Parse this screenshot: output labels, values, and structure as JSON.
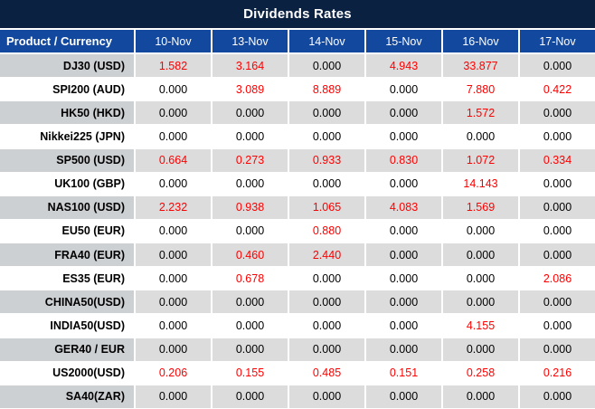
{
  "title": "Dividends Rates",
  "table": {
    "corner_header": "Product / Currency",
    "date_columns": [
      "10-Nov",
      "13-Nov",
      "14-Nov",
      "15-Nov",
      "16-Nov",
      "17-Nov"
    ],
    "rows": [
      {
        "product": "DJ30 (USD)",
        "values": [
          "1.582",
          "3.164",
          "0.000",
          "4.943",
          "33.877",
          "0.000"
        ]
      },
      {
        "product": "SPI200 (AUD)",
        "values": [
          "0.000",
          "3.089",
          "8.889",
          "0.000",
          "7.880",
          "0.422"
        ]
      },
      {
        "product": "HK50 (HKD)",
        "values": [
          "0.000",
          "0.000",
          "0.000",
          "0.000",
          "1.572",
          "0.000"
        ]
      },
      {
        "product": "Nikkei225 (JPN)",
        "values": [
          "0.000",
          "0.000",
          "0.000",
          "0.000",
          "0.000",
          "0.000"
        ]
      },
      {
        "product": "SP500 (USD)",
        "values": [
          "0.664",
          "0.273",
          "0.933",
          "0.830",
          "1.072",
          "0.334"
        ]
      },
      {
        "product": "UK100 (GBP)",
        "values": [
          "0.000",
          "0.000",
          "0.000",
          "0.000",
          "14.143",
          "0.000"
        ]
      },
      {
        "product": "NAS100 (USD)",
        "values": [
          "2.232",
          "0.938",
          "1.065",
          "4.083",
          "1.569",
          "0.000"
        ]
      },
      {
        "product": "EU50 (EUR)",
        "values": [
          "0.000",
          "0.000",
          "0.880",
          "0.000",
          "0.000",
          "0.000"
        ]
      },
      {
        "product": "FRA40 (EUR)",
        "values": [
          "0.000",
          "0.460",
          "2.440",
          "0.000",
          "0.000",
          "0.000"
        ]
      },
      {
        "product": "ES35 (EUR)",
        "values": [
          "0.000",
          "0.678",
          "0.000",
          "0.000",
          "0.000",
          "2.086"
        ]
      },
      {
        "product": "CHINA50(USD)",
        "values": [
          "0.000",
          "0.000",
          "0.000",
          "0.000",
          "0.000",
          "0.000"
        ]
      },
      {
        "product": "INDIA50(USD)",
        "values": [
          "0.000",
          "0.000",
          "0.000",
          "0.000",
          "4.155",
          "0.000"
        ]
      },
      {
        "product": "GER40 / EUR",
        "values": [
          "0.000",
          "0.000",
          "0.000",
          "0.000",
          "0.000",
          "0.000"
        ]
      },
      {
        "product": "US2000(USD)",
        "values": [
          "0.206",
          "0.155",
          "0.485",
          "0.151",
          "0.258",
          "0.216"
        ]
      },
      {
        "product": "SA40(ZAR)",
        "values": [
          "0.000",
          "0.000",
          "0.000",
          "0.000",
          "0.000",
          "0.000"
        ]
      }
    ]
  },
  "chart_data": {
    "type": "table",
    "title": "Dividends Rates",
    "columns": [
      "Product / Currency",
      "10-Nov",
      "13-Nov",
      "14-Nov",
      "15-Nov",
      "16-Nov",
      "17-Nov"
    ],
    "rows": [
      [
        "DJ30 (USD)",
        1.582,
        3.164,
        0.0,
        4.943,
        33.877,
        0.0
      ],
      [
        "SPI200 (AUD)",
        0.0,
        3.089,
        8.889,
        0.0,
        7.88,
        0.422
      ],
      [
        "HK50 (HKD)",
        0.0,
        0.0,
        0.0,
        0.0,
        1.572,
        0.0
      ],
      [
        "Nikkei225 (JPN)",
        0.0,
        0.0,
        0.0,
        0.0,
        0.0,
        0.0
      ],
      [
        "SP500 (USD)",
        0.664,
        0.273,
        0.933,
        0.83,
        1.072,
        0.334
      ],
      [
        "UK100 (GBP)",
        0.0,
        0.0,
        0.0,
        0.0,
        14.143,
        0.0
      ],
      [
        "NAS100 (USD)",
        2.232,
        0.938,
        1.065,
        4.083,
        1.569,
        0.0
      ],
      [
        "EU50 (EUR)",
        0.0,
        0.0,
        0.88,
        0.0,
        0.0,
        0.0
      ],
      [
        "FRA40 (EUR)",
        0.0,
        0.46,
        2.44,
        0.0,
        0.0,
        0.0
      ],
      [
        "ES35 (EUR)",
        0.0,
        0.678,
        0.0,
        0.0,
        0.0,
        2.086
      ],
      [
        "CHINA50(USD)",
        0.0,
        0.0,
        0.0,
        0.0,
        0.0,
        0.0
      ],
      [
        "INDIA50(USD)",
        0.0,
        0.0,
        0.0,
        0.0,
        4.155,
        0.0
      ],
      [
        "GER40 / EUR",
        0.0,
        0.0,
        0.0,
        0.0,
        0.0,
        0.0
      ],
      [
        "US2000(USD)",
        0.206,
        0.155,
        0.485,
        0.151,
        0.258,
        0.216
      ],
      [
        "SA40(ZAR)",
        0.0,
        0.0,
        0.0,
        0.0,
        0.0,
        0.0
      ]
    ],
    "highlight_rule": "non-zero values shown in red, zero values in black"
  },
  "colors": {
    "title_bar_bg": "#0B2142",
    "header_row_bg": "#12489E",
    "header_text": "#FFFFFF",
    "stripe_product_bg": "#CDD0D3",
    "stripe_value_bg": "#DCDCDC",
    "white_row_bg": "#FFFFFF",
    "nonzero_value_color": "#FF0000",
    "zero_value_color": "#000000",
    "gridline_color": "#FFFFFF"
  }
}
